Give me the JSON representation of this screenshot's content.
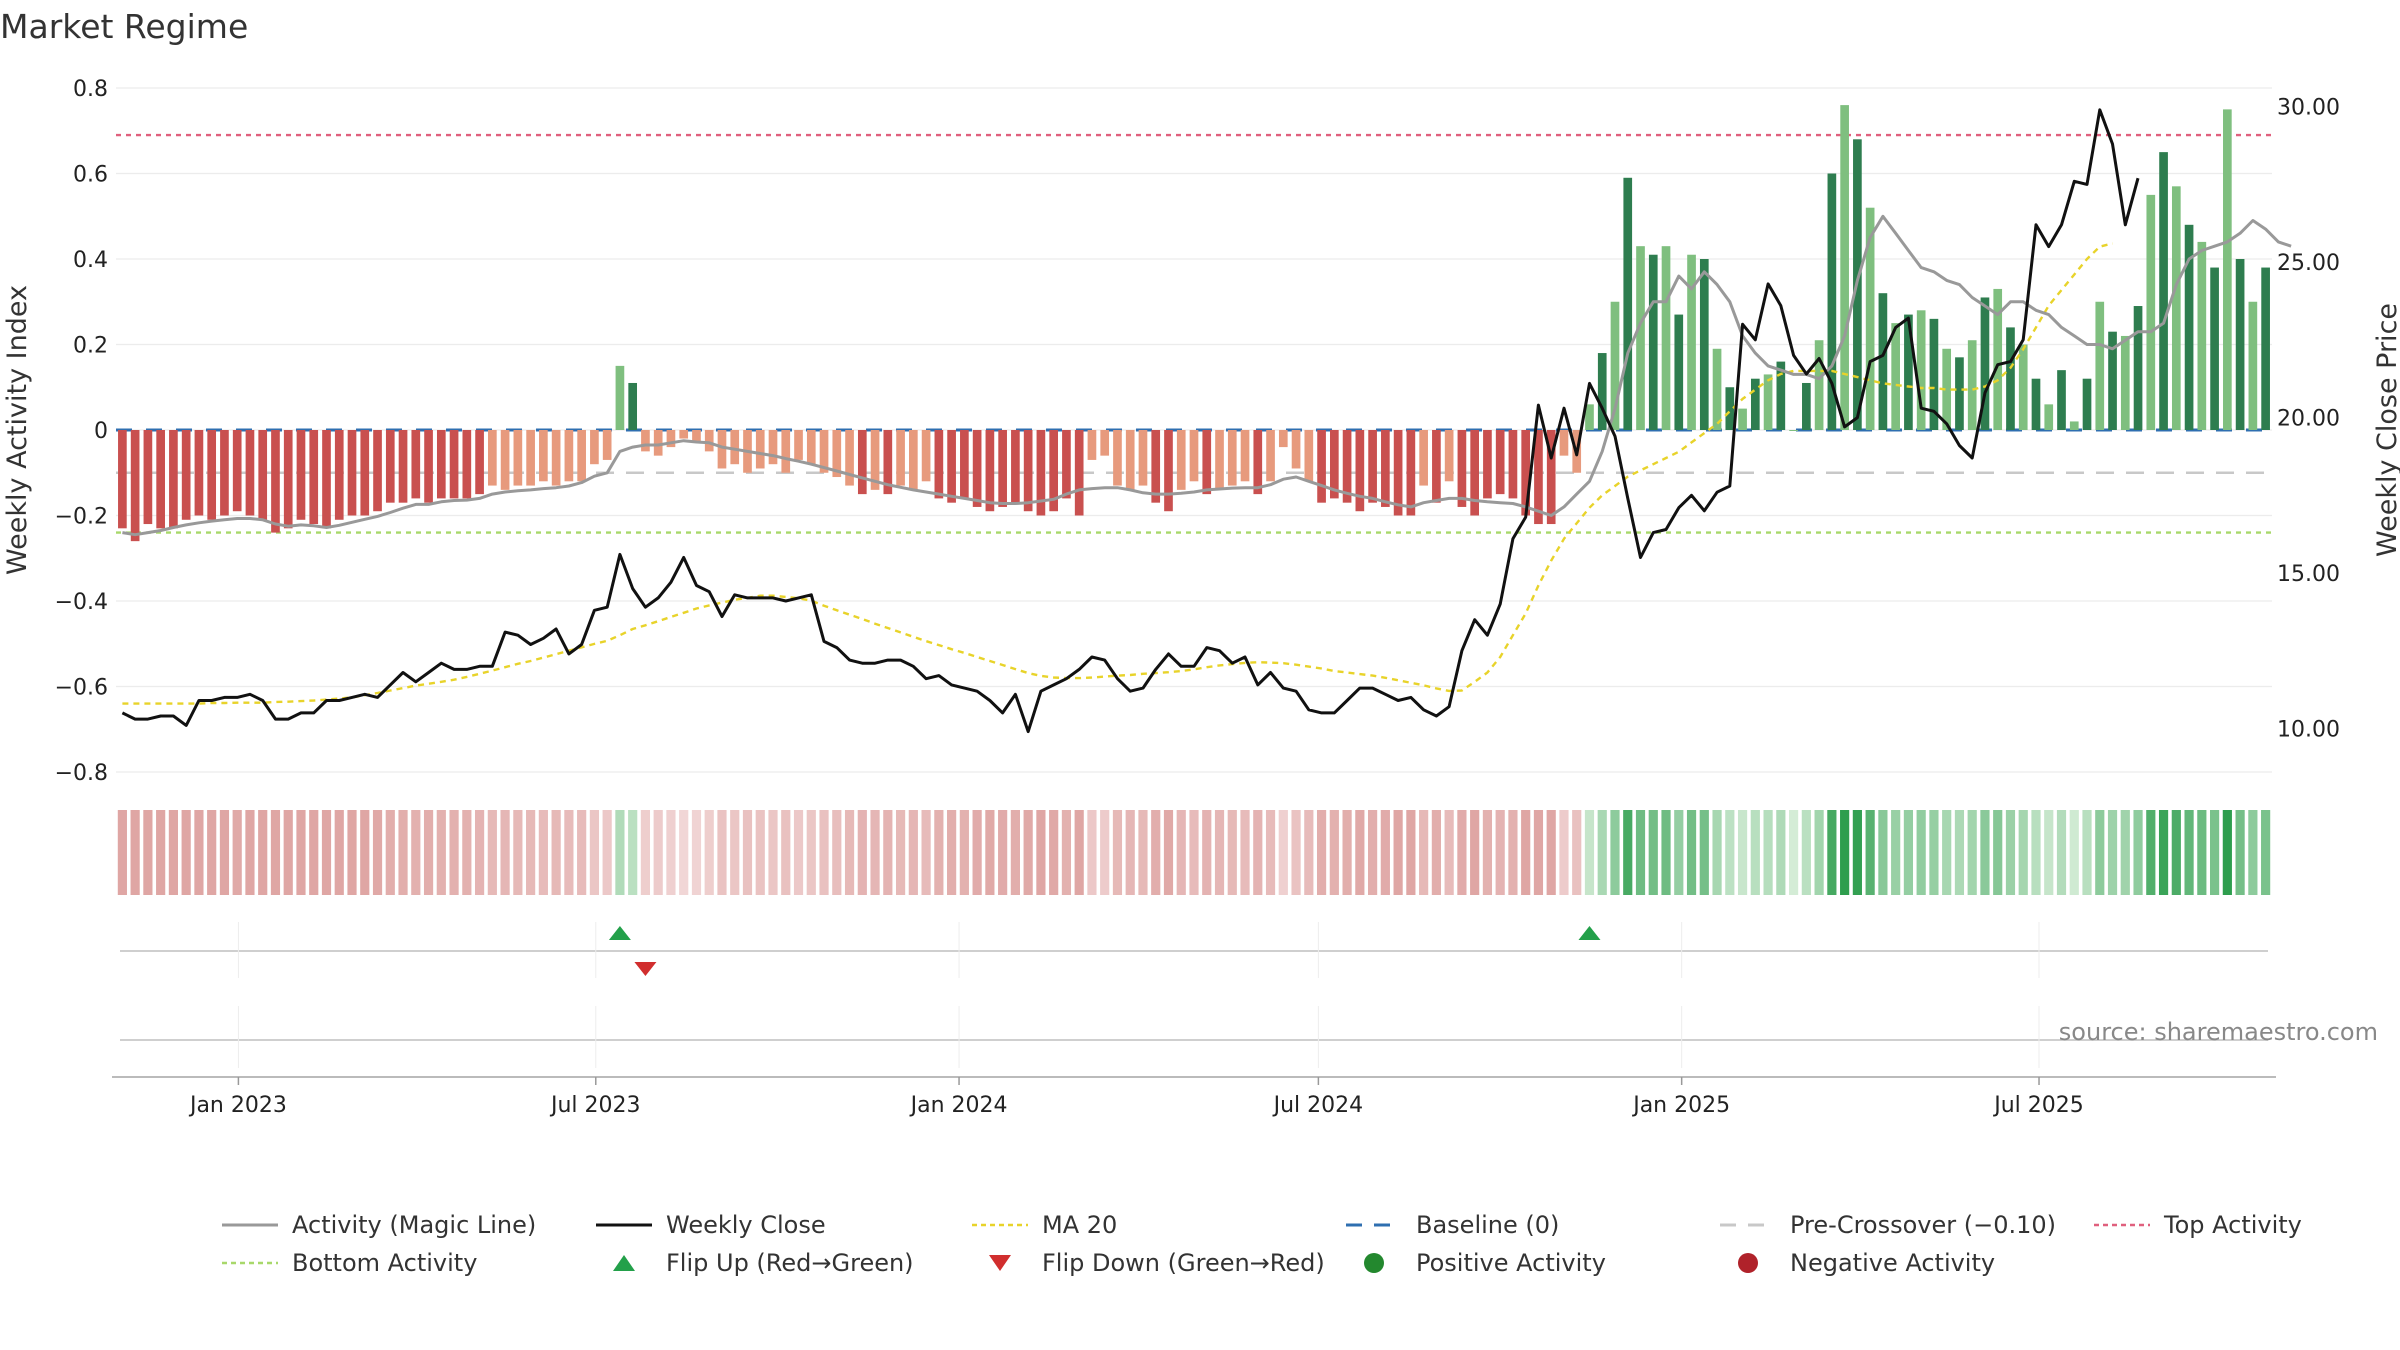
{
  "chart_data": {
    "type": "bar",
    "title": "Market Regime",
    "source": "source: sharemaestro.com",
    "ylabel_left": "Weekly Activity Index",
    "ylabel_right": "Weekly Close Price",
    "y_ticks_left": [
      "0.8",
      "0.6",
      "0.4",
      "0.2",
      "0",
      "−0.2",
      "−0.4",
      "−0.6",
      "−0.8"
    ],
    "y_ticks_right": [
      "30.00",
      "25.00",
      "20.00",
      "15.00",
      "10.00"
    ],
    "x_ticks": [
      "Jan 2023",
      "Jul 2023",
      "Jan 2024",
      "Jul 2024",
      "Jan 2025",
      "Jul 2025"
    ],
    "ylim_left": [
      -0.8,
      0.8
    ],
    "ylim_right": [
      8.6,
      30.6
    ],
    "date_range": [
      "2022-10-31",
      "2025-10-27"
    ],
    "reference_lines": {
      "baseline": 0,
      "pre_crossover": -0.1,
      "top_activity": 0.69,
      "bottom_activity": -0.24
    },
    "activity_index": [
      -0.23,
      -0.26,
      -0.22,
      -0.23,
      -0.23,
      -0.21,
      -0.2,
      -0.21,
      -0.2,
      -0.19,
      -0.2,
      -0.21,
      -0.24,
      -0.23,
      -0.21,
      -0.22,
      -0.23,
      -0.21,
      -0.2,
      -0.2,
      -0.19,
      -0.17,
      -0.17,
      -0.16,
      -0.17,
      -0.16,
      -0.16,
      -0.16,
      -0.15,
      -0.13,
      -0.14,
      -0.13,
      -0.13,
      -0.12,
      -0.13,
      -0.12,
      -0.12,
      -0.08,
      -0.07,
      0.15,
      0.11,
      -0.05,
      -0.06,
      -0.04,
      -0.02,
      -0.03,
      -0.05,
      -0.09,
      -0.08,
      -0.1,
      -0.09,
      -0.08,
      -0.1,
      -0.07,
      -0.08,
      -0.1,
      -0.11,
      -0.13,
      -0.15,
      -0.14,
      -0.15,
      -0.13,
      -0.14,
      -0.12,
      -0.16,
      -0.17,
      -0.16,
      -0.18,
      -0.19,
      -0.18,
      -0.17,
      -0.19,
      -0.2,
      -0.19,
      -0.16,
      -0.2,
      -0.07,
      -0.06,
      -0.13,
      -0.14,
      -0.13,
      -0.17,
      -0.19,
      -0.14,
      -0.12,
      -0.15,
      -0.14,
      -0.13,
      -0.12,
      -0.15,
      -0.12,
      -0.04,
      -0.09,
      -0.12,
      -0.17,
      -0.16,
      -0.17,
      -0.19,
      -0.17,
      -0.18,
      -0.2,
      -0.2,
      -0.13,
      -0.17,
      -0.12,
      -0.18,
      -0.2,
      -0.16,
      -0.15,
      -0.16,
      -0.2,
      -0.22,
      -0.22,
      -0.06,
      -0.1,
      0.06,
      0.18,
      0.3,
      0.59,
      0.43,
      0.41,
      0.43,
      0.27,
      0.41,
      0.4,
      0.19,
      0.1,
      0.05,
      0.12,
      0.13,
      0.16,
      0.0,
      0.11,
      0.21,
      0.6,
      0.76,
      0.68,
      0.52,
      0.32,
      0.25,
      0.27,
      0.28,
      0.26,
      0.19,
      0.17,
      0.21,
      0.31,
      0.33,
      0.24,
      0.2,
      0.12,
      0.06,
      0.14,
      0.02,
      0.12,
      0.3,
      0.23,
      0.22,
      0.29,
      0.55,
      0.65,
      0.57,
      0.48,
      0.44,
      0.38,
      0.75,
      0.4,
      0.3,
      0.38
    ],
    "magic_line": [
      -0.24,
      -0.245,
      -0.24,
      -0.235,
      -0.228,
      -0.222,
      -0.217,
      -0.213,
      -0.21,
      -0.207,
      -0.207,
      -0.21,
      -0.22,
      -0.225,
      -0.222,
      -0.224,
      -0.228,
      -0.223,
      -0.216,
      -0.209,
      -0.202,
      -0.193,
      -0.183,
      -0.174,
      -0.174,
      -0.168,
      -0.165,
      -0.164,
      -0.16,
      -0.15,
      -0.145,
      -0.142,
      -0.14,
      -0.137,
      -0.135,
      -0.131,
      -0.123,
      -0.108,
      -0.1,
      -0.05,
      -0.04,
      -0.035,
      -0.035,
      -0.03,
      -0.025,
      -0.028,
      -0.03,
      -0.04,
      -0.045,
      -0.05,
      -0.055,
      -0.06,
      -0.067,
      -0.073,
      -0.08,
      -0.088,
      -0.096,
      -0.104,
      -0.112,
      -0.12,
      -0.128,
      -0.134,
      -0.14,
      -0.145,
      -0.15,
      -0.155,
      -0.16,
      -0.165,
      -0.17,
      -0.172,
      -0.172,
      -0.17,
      -0.166,
      -0.162,
      -0.15,
      -0.14,
      -0.137,
      -0.135,
      -0.135,
      -0.14,
      -0.147,
      -0.15,
      -0.15,
      -0.148,
      -0.145,
      -0.14,
      -0.138,
      -0.136,
      -0.135,
      -0.135,
      -0.128,
      -0.115,
      -0.11,
      -0.12,
      -0.13,
      -0.14,
      -0.148,
      -0.155,
      -0.16,
      -0.168,
      -0.175,
      -0.18,
      -0.17,
      -0.165,
      -0.16,
      -0.16,
      -0.165,
      -0.168,
      -0.17,
      -0.172,
      -0.18,
      -0.19,
      -0.2,
      -0.18,
      -0.15,
      -0.12,
      -0.05,
      0.05,
      0.18,
      0.25,
      0.3,
      0.3,
      0.36,
      0.33,
      0.37,
      0.34,
      0.3,
      0.22,
      0.18,
      0.15,
      0.14,
      0.13,
      0.13,
      0.12,
      0.15,
      0.22,
      0.35,
      0.45,
      0.5,
      0.46,
      0.42,
      0.38,
      0.37,
      0.35,
      0.34,
      0.31,
      0.29,
      0.27,
      0.3,
      0.3,
      0.28,
      0.27,
      0.24,
      0.22,
      0.2,
      0.2,
      0.19,
      0.21,
      0.23,
      0.23,
      0.25,
      0.34,
      0.4,
      0.42,
      0.43,
      0.44,
      0.46,
      0.49,
      0.47,
      0.44,
      0.43
    ],
    "weekly_close": [
      10.5,
      10.3,
      10.3,
      10.4,
      10.4,
      10.1,
      10.9,
      10.9,
      11,
      11,
      11.1,
      10.9,
      10.3,
      10.3,
      10.5,
      10.5,
      10.9,
      10.9,
      11,
      11.1,
      11,
      11.4,
      11.8,
      11.5,
      11.8,
      12.1,
      11.9,
      11.9,
      12,
      12,
      13.1,
      13,
      12.7,
      12.9,
      13.2,
      12.4,
      12.7,
      13.8,
      13.9,
      15.6,
      14.5,
      13.9,
      14.2,
      14.7,
      15.5,
      14.6,
      14.4,
      13.6,
      14.3,
      14.2,
      14.2,
      14.2,
      14.1,
      14.2,
      14.3,
      12.8,
      12.6,
      12.2,
      12.1,
      12.1,
      12.2,
      12.2,
      12,
      11.6,
      11.7,
      11.4,
      11.3,
      11.2,
      10.9,
      10.5,
      11.1,
      9.9,
      11.2,
      11.4,
      11.6,
      11.9,
      12.3,
      12.2,
      11.6,
      11.2,
      11.3,
      11.9,
      12.4,
      12,
      12,
      12.6,
      12.5,
      12.1,
      12.3,
      11.4,
      11.8,
      11.3,
      11.2,
      10.6,
      10.5,
      10.5,
      10.9,
      11.3,
      11.3,
      11.1,
      10.9,
      11,
      10.6,
      10.4,
      10.7,
      12.5,
      13.5,
      13,
      14,
      16.1,
      16.8,
      20.4,
      18.7,
      20.3,
      18.8,
      21.1,
      20.3,
      19.4,
      17.4,
      15.5,
      16.3,
      16.4,
      17.1,
      17.5,
      17,
      17.6,
      17.8,
      23,
      22.5,
      24.3,
      23.6,
      22,
      21.4,
      21.9,
      21.1,
      19.7,
      20,
      21.8,
      22,
      22.9,
      23.2,
      20.3,
      20.2,
      19.8,
      19.1,
      18.7,
      20.8,
      21.7,
      21.8,
      22.5,
      26.2,
      25.5,
      26.2,
      27.6,
      27.5,
      29.9,
      28.8,
      26.2,
      27.7
    ],
    "ma20": [
      10.8,
      10.8,
      10.8,
      10.8,
      10.8,
      10.8,
      10.8,
      10.82,
      10.82,
      10.83,
      10.83,
      10.83,
      10.85,
      10.86,
      10.88,
      10.9,
      10.93,
      10.96,
      11.0,
      11.07,
      11.14,
      11.22,
      11.3,
      11.38,
      11.44,
      11.5,
      11.57,
      11.66,
      11.76,
      11.86,
      11.97,
      12.08,
      12.17,
      12.28,
      12.39,
      12.5,
      12.61,
      12.72,
      12.82,
      13.0,
      13.2,
      13.32,
      13.45,
      13.59,
      13.72,
      13.86,
      13.96,
      14.05,
      14.14,
      14.2,
      14.27,
      14.27,
      14.23,
      14.19,
      14.11,
      13.95,
      13.8,
      13.66,
      13.52,
      13.37,
      13.23,
      13.09,
      12.95,
      12.81,
      12.68,
      12.55,
      12.43,
      12.3,
      12.17,
      12.04,
      11.91,
      11.78,
      11.69,
      11.64,
      11.62,
      11.62,
      11.64,
      11.67,
      11.7,
      11.72,
      11.76,
      11.78,
      11.81,
      11.85,
      11.9,
      11.97,
      12.03,
      12.07,
      12.11,
      12.13,
      12.12,
      12.1,
      12.05,
      11.99,
      11.93,
      11.85,
      11.8,
      11.75,
      11.7,
      11.63,
      11.55,
      11.47,
      11.39,
      11.29,
      11.21,
      11.22,
      11.5,
      11.8,
      12.3,
      13.0,
      13.7,
      14.6,
      15.4,
      16.1,
      16.6,
      17.1,
      17.5,
      17.8,
      18.1,
      18.3,
      18.5,
      18.7,
      18.9,
      19.2,
      19.5,
      19.8,
      20.2,
      20.6,
      20.9,
      21.2,
      21.4,
      21.5,
      21.5,
      21.5,
      21.5,
      21.4,
      21.3,
      21.2,
      21.1,
      21.05,
      21.0,
      20.95,
      20.95,
      20.9,
      20.9,
      20.9,
      21.0,
      21.2,
      21.6,
      22.2,
      22.9,
      23.6,
      24.1,
      24.6,
      25.1,
      25.5,
      25.6
    ]
  },
  "legend": {
    "items": [
      {
        "label": "Activity (Magic Line)"
      },
      {
        "label": "Weekly Close"
      },
      {
        "label": "MA 20"
      },
      {
        "label": "Baseline (0)"
      },
      {
        "label": "Pre-Crossover (−0.10)"
      },
      {
        "label": "Top Activity"
      },
      {
        "label": "Bottom Activity"
      },
      {
        "label": "Flip Up (Red→Green)"
      },
      {
        "label": "Flip Down (Green→Red)"
      },
      {
        "label": "Positive Activity"
      },
      {
        "label": "Negative Activity"
      }
    ]
  },
  "colors": {
    "positive_dark": "#2e7d4f",
    "positive_light": "#7fbf7f",
    "negative_dark": "#c9504f",
    "negative_light": "#e79a7d",
    "magic_line": "#999999",
    "weekly_close": "#111111",
    "ma20": "#e8d32a",
    "baseline": "#2f6fb0",
    "pre_crossover": "#c8c8c8",
    "top_activity": "#e0607e",
    "bottom_activity": "#a8d86a",
    "flip_up": "#23a04a",
    "flip_down": "#d12e2e",
    "positive_dot": "#23882e",
    "negative_dot": "#b0222a"
  }
}
